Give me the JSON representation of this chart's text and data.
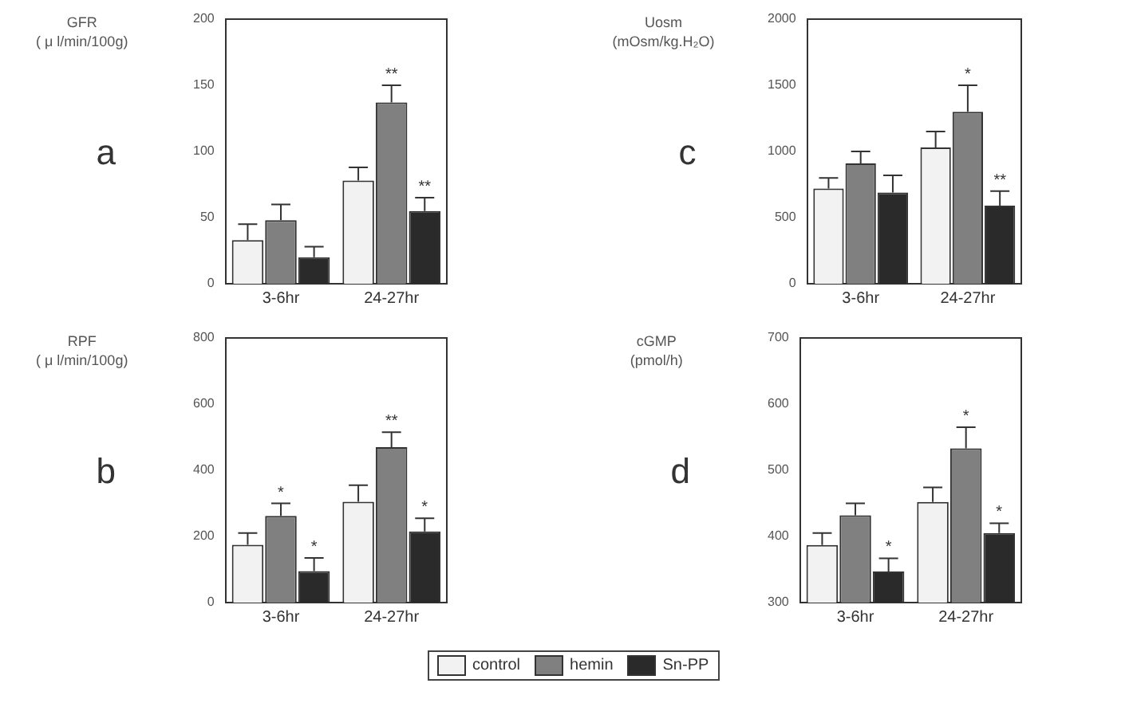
{
  "chart_data": [
    {
      "type": "bar",
      "title": "a",
      "ylabel": "GFR\n( μ l/min/100g)",
      "categories": [
        "3-6hr",
        "24-27hr"
      ],
      "ylim": [
        0,
        200
      ],
      "yticks": [
        0,
        50,
        100,
        150,
        200
      ],
      "grid": false,
      "legend": "bottom",
      "series": [
        {
          "name": "control",
          "color": "#f2f2f2",
          "values": [
            33,
            78
          ],
          "errors": [
            12,
            10
          ]
        },
        {
          "name": "hemin",
          "color": "#808080",
          "values": [
            48,
            137
          ],
          "errors": [
            12,
            13
          ],
          "value_labels": [
            null,
            "**"
          ]
        },
        {
          "name": "Sn-PP",
          "color": "#2a2a2a",
          "values": [
            20,
            55
          ],
          "errors": [
            8,
            10
          ],
          "value_labels": [
            null,
            "**"
          ]
        }
      ]
    },
    {
      "type": "bar",
      "title": "c",
      "ylabel": "Uosm\n(mOsm/kg.H₂O)",
      "categories": [
        "3-6hr",
        "24-27hr"
      ],
      "ylim": [
        0,
        2000
      ],
      "yticks": [
        0,
        500,
        1000,
        1500,
        2000
      ],
      "grid": false,
      "legend": "bottom",
      "series": [
        {
          "name": "control",
          "color": "#f2f2f2",
          "values": [
            720,
            1030
          ],
          "errors": [
            80,
            120
          ]
        },
        {
          "name": "hemin",
          "color": "#808080",
          "values": [
            910,
            1300
          ],
          "errors": [
            90,
            200
          ],
          "value_labels": [
            null,
            "*"
          ]
        },
        {
          "name": "Sn-PP",
          "color": "#2a2a2a",
          "values": [
            690,
            590
          ],
          "errors": [
            130,
            110
          ],
          "value_labels": [
            null,
            "**"
          ]
        }
      ]
    },
    {
      "type": "bar",
      "title": "b",
      "ylabel": "RPF\n( μ l/min/100g)",
      "categories": [
        "3-6hr",
        "24-27hr"
      ],
      "ylim": [
        0,
        800
      ],
      "yticks": [
        0,
        200,
        400,
        600,
        800
      ],
      "grid": false,
      "legend": "bottom",
      "series": [
        {
          "name": "control",
          "color": "#f2f2f2",
          "values": [
            175,
            305
          ],
          "errors": [
            35,
            50
          ]
        },
        {
          "name": "hemin",
          "color": "#808080",
          "values": [
            262,
            470
          ],
          "errors": [
            38,
            45
          ],
          "value_labels": [
            "*",
            "**"
          ]
        },
        {
          "name": "Sn-PP",
          "color": "#2a2a2a",
          "values": [
            95,
            215
          ],
          "errors": [
            40,
            40
          ],
          "value_labels": [
            "*",
            "*"
          ]
        }
      ]
    },
    {
      "type": "bar",
      "title": "d",
      "ylabel": "cGMP\n(pmol/h)",
      "categories": [
        "3-6hr",
        "24-27hr"
      ],
      "ylim": [
        300,
        700
      ],
      "yticks": [
        300,
        400,
        500,
        600,
        700
      ],
      "grid": false,
      "legend": "bottom",
      "series": [
        {
          "name": "control",
          "color": "#f2f2f2",
          "values": [
            387,
            452
          ],
          "errors": [
            18,
            22
          ]
        },
        {
          "name": "hemin",
          "color": "#808080",
          "values": [
            432,
            533
          ],
          "errors": [
            18,
            32
          ],
          "value_labels": [
            null,
            "*"
          ]
        },
        {
          "name": "Sn-PP",
          "color": "#2a2a2a",
          "values": [
            347,
            405
          ],
          "errors": [
            20,
            15
          ],
          "value_labels": [
            "*",
            "*"
          ]
        }
      ]
    }
  ]
}
